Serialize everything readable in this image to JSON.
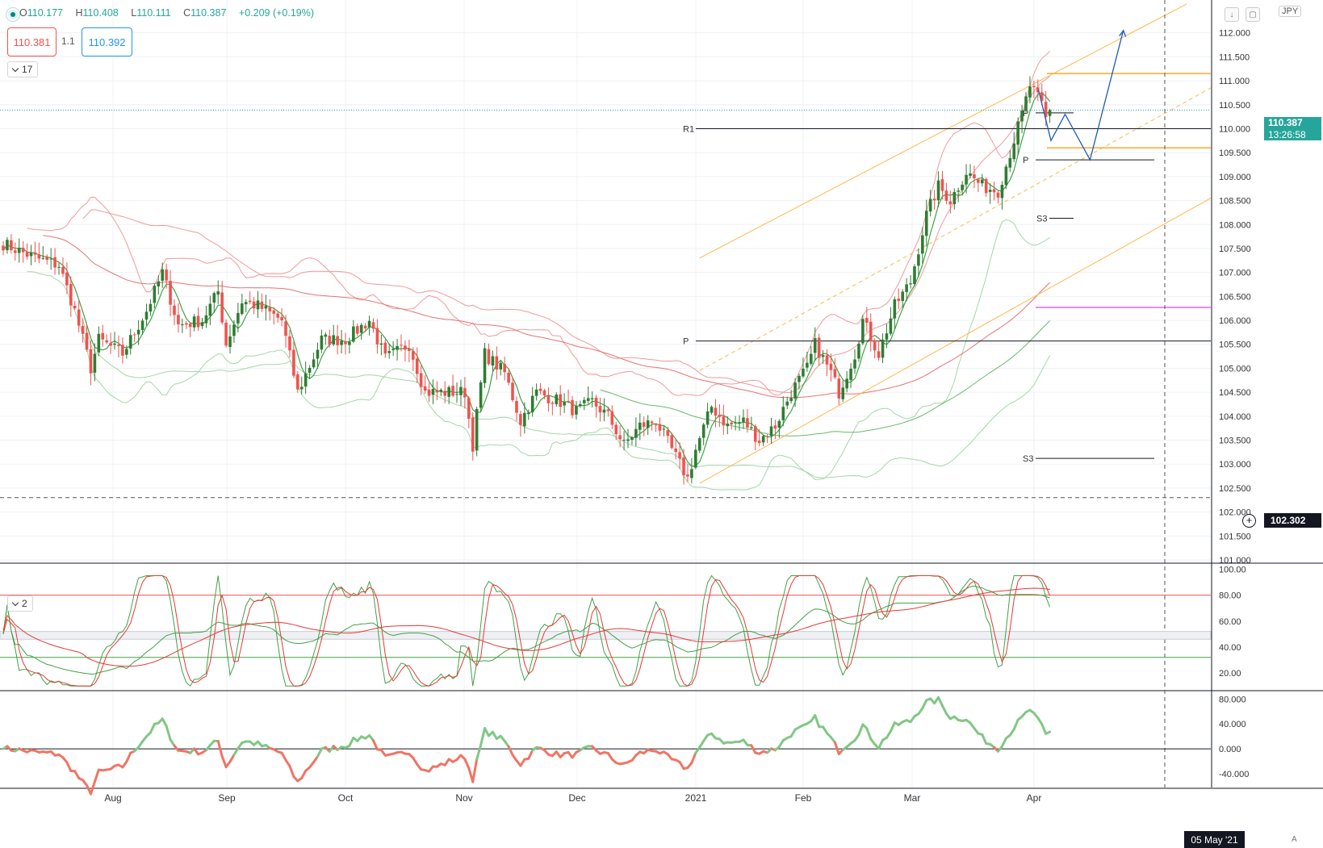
{
  "header": {
    "ohlc": {
      "open_label": "O",
      "open": "110.177",
      "high_label": "H",
      "high": "110.408",
      "low_label": "L",
      "low": "110.111",
      "close_label": "C",
      "close": "110.387",
      "change": "+0.209 (+0.19%)"
    },
    "sell_price": "110.381",
    "spread": "1.1",
    "buy_price": "110.392",
    "currency": "JPY"
  },
  "panes": {
    "main_collapse": "17",
    "osc_collapse": "2"
  },
  "price_tag": {
    "price": "110.387",
    "countdown": "13:26:58"
  },
  "crosshair": {
    "price": "102.302",
    "date": "05 May '21"
  },
  "scale_mode": "A",
  "colors": {
    "up": "#26a69a",
    "down": "#ef5350",
    "candle_up": "#2e7d32",
    "channel": "#ffb74d",
    "envelope_red": "#ef9a9a",
    "envelope_green": "#a5d6a7",
    "projection": "#1e5bb5",
    "pivot": "#131722",
    "magenta": "#e040fb"
  },
  "chart_data": [
    {
      "type": "candlestick",
      "symbol_currency": "JPY",
      "x_labels": [
        "Aug",
        "Sep",
        "Oct",
        "Nov",
        "Dec",
        "2021",
        "Feb",
        "Mar",
        "Apr"
      ],
      "y_ticks": [
        "101.000",
        "101.500",
        "102.000",
        "102.500",
        "103.000",
        "103.500",
        "104.000",
        "104.500",
        "105.000",
        "105.500",
        "106.000",
        "106.500",
        "107.000",
        "107.500",
        "108.000",
        "108.500",
        "109.000",
        "109.500",
        "110.000",
        "110.500",
        "111.000",
        "111.500",
        "112.000"
      ],
      "ylim": [
        100.95,
        112.55
      ],
      "pivot_labels": [
        "R1",
        "P",
        "P",
        "S3",
        "S3",
        "P"
      ],
      "pivot_levels": [
        110.0,
        105.57,
        109.35,
        108.13,
        103.12,
        110.33
      ],
      "horizontal_levels": [
        111.15,
        109.6,
        106.27
      ],
      "last_price": 110.387,
      "crosshair_price": 102.302,
      "anchors": [
        {
          "x": 0,
          "y": 107.6
        },
        {
          "x": 8,
          "y": 107.3
        },
        {
          "x": 14,
          "y": 107.15
        },
        {
          "x": 18,
          "y": 106.2
        },
        {
          "x": 22,
          "y": 105.0
        },
        {
          "x": 24,
          "y": 105.6
        },
        {
          "x": 30,
          "y": 105.3
        },
        {
          "x": 36,
          "y": 106.2
        },
        {
          "x": 40,
          "y": 107.0
        },
        {
          "x": 44,
          "y": 105.9
        },
        {
          "x": 50,
          "y": 106.0
        },
        {
          "x": 54,
          "y": 106.6
        },
        {
          "x": 56,
          "y": 105.5
        },
        {
          "x": 60,
          "y": 106.4
        },
        {
          "x": 64,
          "y": 106.3
        },
        {
          "x": 70,
          "y": 106.0
        },
        {
          "x": 74,
          "y": 104.5
        },
        {
          "x": 80,
          "y": 105.6
        },
        {
          "x": 86,
          "y": 105.6
        },
        {
          "x": 92,
          "y": 106.0
        },
        {
          "x": 96,
          "y": 105.2
        },
        {
          "x": 102,
          "y": 105.5
        },
        {
          "x": 106,
          "y": 104.5
        },
        {
          "x": 110,
          "y": 104.5
        },
        {
          "x": 116,
          "y": 104.5
        },
        {
          "x": 118,
          "y": 103.4
        },
        {
          "x": 121,
          "y": 105.3
        },
        {
          "x": 126,
          "y": 104.9
        },
        {
          "x": 130,
          "y": 103.9
        },
        {
          "x": 134,
          "y": 104.5
        },
        {
          "x": 140,
          "y": 104.3
        },
        {
          "x": 144,
          "y": 104.1
        },
        {
          "x": 148,
          "y": 104.3
        },
        {
          "x": 152,
          "y": 104.0
        },
        {
          "x": 156,
          "y": 103.4
        },
        {
          "x": 160,
          "y": 103.8
        },
        {
          "x": 164,
          "y": 103.9
        },
        {
          "x": 168,
          "y": 103.3
        },
        {
          "x": 172,
          "y": 102.7
        },
        {
          "x": 174,
          "y": 103.3
        },
        {
          "x": 178,
          "y": 104.2
        },
        {
          "x": 182,
          "y": 103.8
        },
        {
          "x": 186,
          "y": 103.9
        },
        {
          "x": 190,
          "y": 103.5
        },
        {
          "x": 194,
          "y": 103.8
        },
        {
          "x": 198,
          "y": 104.5
        },
        {
          "x": 202,
          "y": 105.0
        },
        {
          "x": 204,
          "y": 105.5
        },
        {
          "x": 208,
          "y": 104.9
        },
        {
          "x": 210,
          "y": 104.5
        },
        {
          "x": 214,
          "y": 105.3
        },
        {
          "x": 216,
          "y": 106.0
        },
        {
          "x": 220,
          "y": 105.3
        },
        {
          "x": 224,
          "y": 106.3
        },
        {
          "x": 228,
          "y": 106.8
        },
        {
          "x": 232,
          "y": 108.2
        },
        {
          "x": 235,
          "y": 108.8
        },
        {
          "x": 238,
          "y": 108.5
        },
        {
          "x": 242,
          "y": 109.1
        },
        {
          "x": 246,
          "y": 108.8
        },
        {
          "x": 250,
          "y": 108.7
        },
        {
          "x": 253,
          "y": 109.5
        },
        {
          "x": 256,
          "y": 110.3
        },
        {
          "x": 258,
          "y": 110.9
        },
        {
          "x": 261,
          "y": 110.5
        },
        {
          "x": 262,
          "y": 110.2
        },
        {
          "x": 263,
          "y": 110.387
        }
      ],
      "projection_path": [
        [
          110.8,
          0
        ],
        [
          109.75,
          1.5
        ],
        [
          110.3,
          3.2
        ],
        [
          109.35,
          6.2
        ],
        [
          112.05,
          10.2
        ]
      ]
    },
    {
      "type": "line",
      "name_hidden": true,
      "y_ticks": [
        "20.00",
        "40.00",
        "60.00",
        "80.00",
        "100.00"
      ],
      "ylim": [
        7,
        104
      ],
      "levels": [
        80,
        52,
        46,
        32
      ]
    },
    {
      "type": "line",
      "y_ticks": [
        "-40.000",
        "0.000",
        "40.000",
        "80.000"
      ],
      "ylim": [
        -62,
        92
      ],
      "zero_line": 0
    }
  ]
}
